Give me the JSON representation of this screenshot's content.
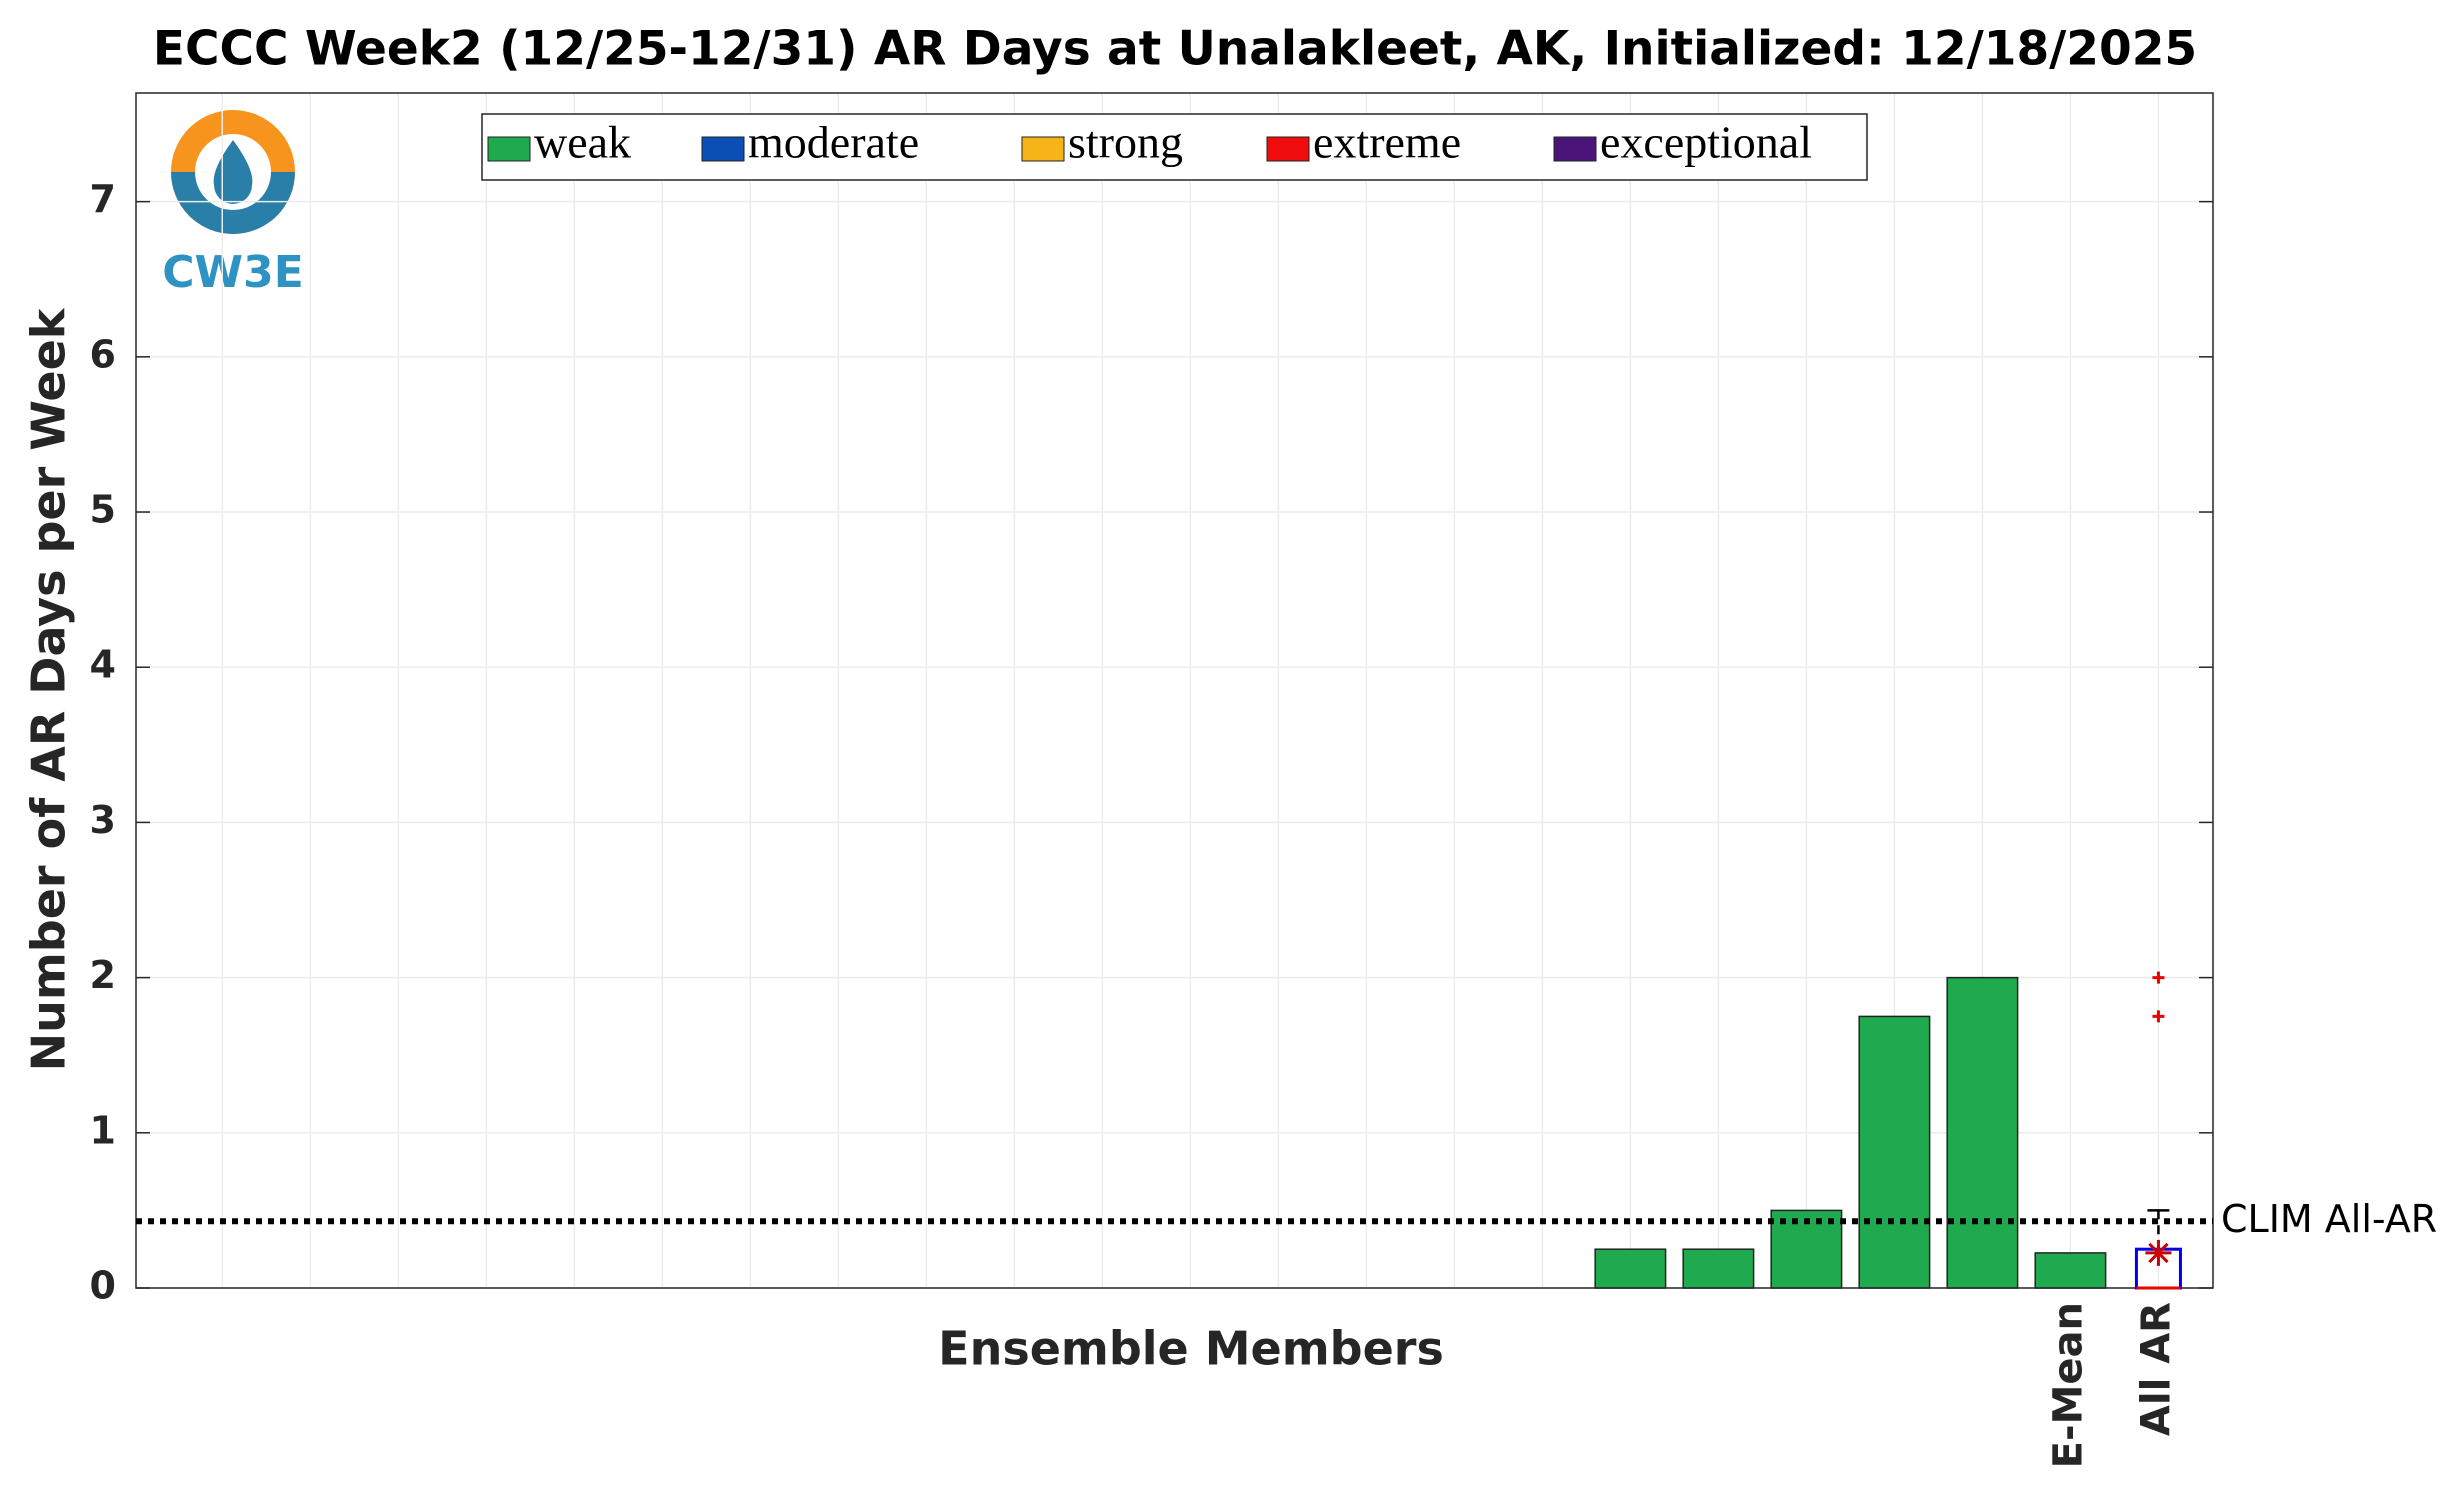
{
  "chart_data": {
    "type": "bar",
    "stacked": true,
    "title": "ECCC Week2 (12/25-12/31) AR Days at Unalakleet, AK, Initialized: 12/18/2025",
    "logo_text": "CW3E",
    "x_label": "Ensemble Members",
    "y_label": "Number of AR Days per Week",
    "categories": [
      null,
      null,
      null,
      null,
      null,
      null,
      null,
      null,
      null,
      null,
      null,
      null,
      null,
      null,
      null,
      null,
      null,
      null,
      null,
      null,
      null,
      "E-Mean",
      "All AR"
    ],
    "series": [
      {
        "name": "weak",
        "color": "#1faa50",
        "values": [
          0,
          0,
          0,
          0,
          0,
          0,
          0,
          0,
          0,
          0,
          0,
          0,
          0,
          0,
          0,
          0,
          0.25,
          0.25,
          0.5,
          1.75,
          2,
          0.226,
          null
        ]
      },
      {
        "name": "moderate",
        "color": "#0b4fb5",
        "values": [
          0,
          0,
          0,
          0,
          0,
          0,
          0,
          0,
          0,
          0,
          0,
          0,
          0,
          0,
          0,
          0,
          0,
          0,
          0,
          0,
          0,
          0,
          null
        ]
      },
      {
        "name": "strong",
        "color": "#f6b419",
        "values": [
          0,
          0,
          0,
          0,
          0,
          0,
          0,
          0,
          0,
          0,
          0,
          0,
          0,
          0,
          0,
          0,
          0,
          0,
          0,
          0,
          0,
          0,
          null
        ]
      },
      {
        "name": "extreme",
        "color": "#ef0d0d",
        "values": [
          0,
          0,
          0,
          0,
          0,
          0,
          0,
          0,
          0,
          0,
          0,
          0,
          0,
          0,
          0,
          0,
          0,
          0,
          0,
          0,
          0,
          0,
          null
        ]
      },
      {
        "name": "exceptional",
        "color": "#4b1478",
        "values": [
          0,
          0,
          0,
          0,
          0,
          0,
          0,
          0,
          0,
          0,
          0,
          0,
          0,
          0,
          0,
          0,
          0,
          0,
          0,
          0,
          0,
          0,
          null
        ]
      }
    ],
    "boxplot": {
      "q1": 0,
      "median": 0,
      "q3": 0.25,
      "whisker_high": 0.5,
      "mean": 0.226,
      "outliers": [
        1.75,
        2
      ]
    },
    "reference": {
      "label": "CLIM All-AR",
      "value": 0.43
    },
    "ylim": [
      0,
      7.7
    ],
    "yticks": [
      0,
      1,
      2,
      3,
      4,
      5,
      6,
      7
    ],
    "grid": true,
    "legend": "top"
  }
}
